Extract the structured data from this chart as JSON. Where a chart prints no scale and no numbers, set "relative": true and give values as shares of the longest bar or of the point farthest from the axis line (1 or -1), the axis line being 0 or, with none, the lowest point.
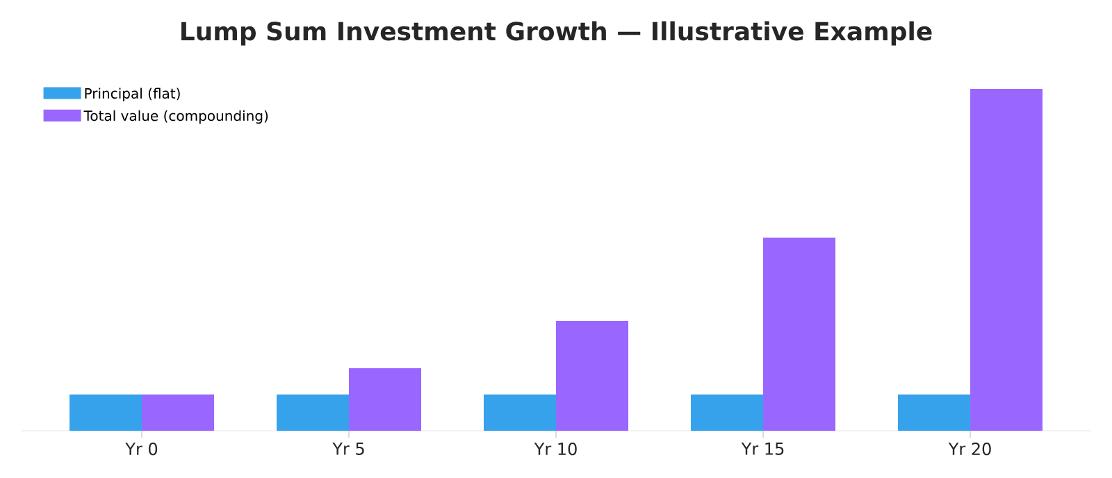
{
  "chart_data": {
    "type": "bar",
    "title": "Lump Sum Investment Growth — Illustrative Example",
    "categories": [
      "Yr 0",
      "Yr 5",
      "Yr 10",
      "Yr 15",
      "Yr 20"
    ],
    "relative": true,
    "series": [
      {
        "name": "Principal (flat)",
        "color": "#36a2eb",
        "values": [
          0.106,
          0.106,
          0.106,
          0.106,
          0.106
        ]
      },
      {
        "name": "Total value (compounding)",
        "color": "#9966ff",
        "values": [
          0.106,
          0.183,
          0.321,
          0.565,
          1.0
        ]
      }
    ],
    "legend": "top left"
  }
}
